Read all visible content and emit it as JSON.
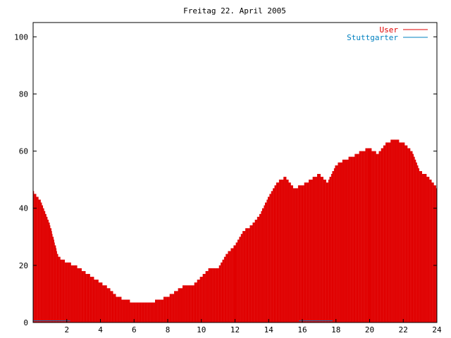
{
  "chart_data": {
    "type": "bar",
    "title": "Freitag 22. April 2005",
    "xlabel": "",
    "ylabel": "",
    "xlim": [
      0,
      24
    ],
    "ylim": [
      0,
      105
    ],
    "x_ticks": [
      2,
      4,
      6,
      8,
      10,
      12,
      14,
      16,
      18,
      20,
      22,
      24
    ],
    "y_ticks": [
      0,
      20,
      40,
      60,
      80,
      100
    ],
    "grid": false,
    "legend_position": "top-right",
    "series": [
      {
        "name": "User",
        "color": "#e00000",
        "x": [
          0,
          0.5,
          1,
          1.5,
          2,
          2.5,
          3,
          3.5,
          4,
          4.5,
          5,
          5.5,
          6,
          6.5,
          7,
          7.5,
          8,
          8.5,
          9,
          9.5,
          10,
          10.5,
          11,
          11.5,
          12,
          12.5,
          13,
          13.5,
          14,
          14.5,
          15,
          15.5,
          16,
          16.5,
          17,
          17.5,
          18,
          18.5,
          19,
          19.5,
          20,
          20.5,
          21,
          21.5,
          22,
          22.5,
          23,
          23.5,
          24
        ],
        "values": [
          46,
          42,
          34,
          23,
          21,
          20,
          18,
          16,
          14,
          12,
          9,
          8,
          7,
          7,
          7,
          8,
          9,
          11,
          13,
          13,
          16,
          19,
          19,
          24,
          27,
          32,
          34,
          38,
          44,
          49,
          51,
          47,
          48,
          50,
          52,
          49,
          55,
          57,
          58,
          60,
          61,
          59,
          63,
          64,
          63,
          60,
          53,
          51,
          47
        ],
        "highlight_x": [
          12,
          20
        ]
      },
      {
        "name": "Stuttgarter",
        "color": "#0080c0",
        "segments": [
          [
            0,
            2.2
          ],
          [
            15.8,
            17.8
          ]
        ],
        "value": 0.6
      }
    ]
  }
}
